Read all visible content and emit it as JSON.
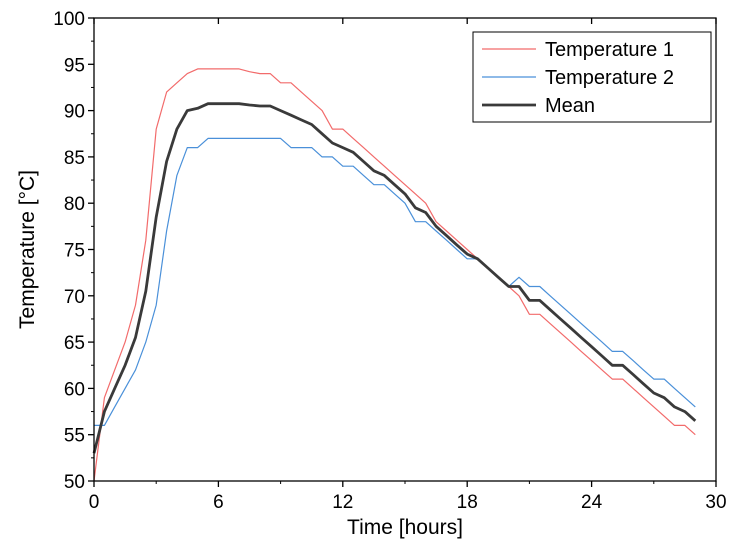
{
  "chart_data": {
    "type": "line",
    "xlabel": "Time [hours]",
    "ylabel": "Temperature [°C]",
    "xlim": [
      0,
      30
    ],
    "ylim": [
      50,
      100
    ],
    "xticks": [
      0,
      6,
      12,
      18,
      24,
      30
    ],
    "yticks": [
      50,
      55,
      60,
      65,
      70,
      75,
      80,
      85,
      90,
      95,
      100
    ],
    "grid": false,
    "legend_position": "top-right",
    "series": [
      {
        "name": "Temperature 1",
        "color": "#f26b6b",
        "stroke": "thin",
        "x": [
          0,
          0.5,
          1,
          1.5,
          2,
          2.5,
          3,
          3.5,
          4,
          4.5,
          5,
          5.5,
          6,
          6.5,
          7,
          7.5,
          8,
          8.5,
          9,
          9.5,
          10,
          10.5,
          11,
          11.5,
          12,
          12.5,
          13,
          13.5,
          14,
          14.5,
          15,
          15.5,
          16,
          16.5,
          17,
          17.5,
          18,
          18.5,
          19,
          19.5,
          20,
          20.5,
          21,
          21.5,
          22,
          22.5,
          23,
          23.5,
          24,
          24.5,
          25,
          25.5,
          26,
          26.5,
          27,
          27.5,
          28,
          28.5,
          29
        ],
        "y": [
          50,
          59,
          62,
          65,
          69,
          76,
          88,
          92,
          93,
          94,
          94.5,
          94.5,
          94.5,
          94.5,
          94.5,
          94.2,
          94,
          94,
          93,
          93,
          92,
          91,
          90,
          88,
          88,
          87,
          86,
          85,
          84,
          83,
          82,
          81,
          80,
          78,
          77,
          76,
          75,
          74,
          73,
          72,
          71,
          70,
          68,
          68,
          67,
          66,
          65,
          64,
          63,
          62,
          61,
          61,
          60,
          59,
          58,
          57,
          56,
          56,
          55
        ]
      },
      {
        "name": "Temperature 2",
        "color": "#4a90d9",
        "stroke": "thin",
        "x": [
          0,
          0.5,
          1,
          1.5,
          2,
          2.5,
          3,
          3.5,
          4,
          4.5,
          5,
          5.5,
          6,
          6.5,
          7,
          7.5,
          8,
          8.5,
          9,
          9.5,
          10,
          10.5,
          11,
          11.5,
          12,
          12.5,
          13,
          13.5,
          14,
          14.5,
          15,
          15.5,
          16,
          16.5,
          17,
          17.5,
          18,
          18.5,
          19,
          19.5,
          20,
          20.5,
          21,
          21.5,
          22,
          22.5,
          23,
          23.5,
          24,
          24.5,
          25,
          25.5,
          26,
          26.5,
          27,
          27.5,
          28,
          28.5,
          29
        ],
        "y": [
          56,
          56,
          58,
          60,
          62,
          65,
          69,
          77,
          83,
          86,
          86,
          87,
          87,
          87,
          87,
          87,
          87,
          87,
          87,
          86,
          86,
          86,
          85,
          85,
          84,
          84,
          83,
          82,
          82,
          81,
          80,
          78,
          78,
          77,
          76,
          75,
          74,
          74,
          73,
          72,
          71,
          72,
          71,
          71,
          70,
          69,
          68,
          67,
          66,
          65,
          64,
          64,
          63,
          62,
          61,
          61,
          60,
          59,
          58
        ]
      },
      {
        "name": "Mean",
        "color": "#3a3a3a",
        "stroke": "thick",
        "x": [
          0,
          0.5,
          1,
          1.5,
          2,
          2.5,
          3,
          3.5,
          4,
          4.5,
          5,
          5.5,
          6,
          6.5,
          7,
          7.5,
          8,
          8.5,
          9,
          9.5,
          10,
          10.5,
          11,
          11.5,
          12,
          12.5,
          13,
          13.5,
          14,
          14.5,
          15,
          15.5,
          16,
          16.5,
          17,
          17.5,
          18,
          18.5,
          19,
          19.5,
          20,
          20.5,
          21,
          21.5,
          22,
          22.5,
          23,
          23.5,
          24,
          24.5,
          25,
          25.5,
          26,
          26.5,
          27,
          27.5,
          28,
          28.5,
          29
        ],
        "y": [
          53,
          57.5,
          60,
          62.5,
          65.5,
          70.5,
          78.5,
          84.5,
          88,
          90,
          90.25,
          90.75,
          90.75,
          90.75,
          90.75,
          90.6,
          90.5,
          90.5,
          90,
          89.5,
          89,
          88.5,
          87.5,
          86.5,
          86,
          85.5,
          84.5,
          83.5,
          83,
          82,
          81,
          79.5,
          79,
          77.5,
          76.5,
          75.5,
          74.5,
          74,
          73,
          72,
          71,
          71,
          69.5,
          69.5,
          68.5,
          67.5,
          66.5,
          65.5,
          64.5,
          63.5,
          62.5,
          62.5,
          61.5,
          60.5,
          59.5,
          59,
          58,
          57.5,
          56.5
        ]
      }
    ]
  }
}
